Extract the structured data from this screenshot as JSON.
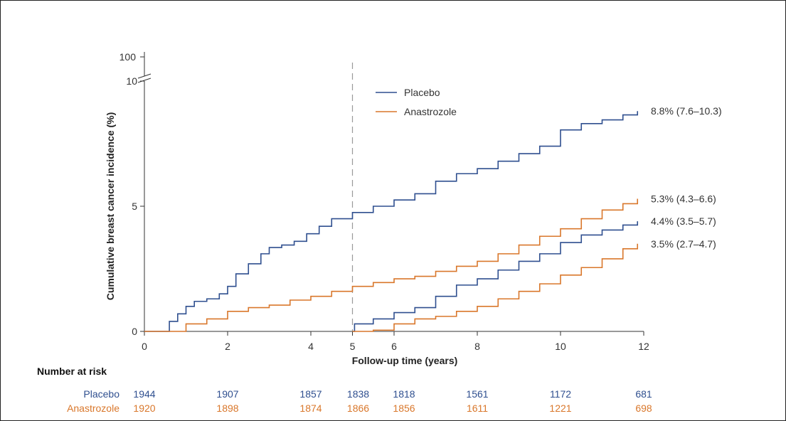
{
  "chart_data": {
    "type": "line",
    "title": "",
    "xlabel": "Follow-up time (years)",
    "ylabel": "Cumulative breast cancer incidence (%)",
    "xlim": [
      0,
      12
    ],
    "ylim": [
      0,
      10
    ],
    "x_ticks": [
      "0",
      "2",
      "4",
      "5",
      "6",
      "8",
      "10",
      "12"
    ],
    "y_ticks": [
      "0",
      "5",
      "10"
    ],
    "y_break_label": "100",
    "landmark_x": 5,
    "legend": {
      "position": "top-center",
      "entries": [
        {
          "label": "Placebo",
          "color": "#2f4f8f"
        },
        {
          "label": "Anastrozole",
          "color": "#d9772b"
        }
      ]
    },
    "series": [
      {
        "name": "Placebo",
        "color": "#2f4f8f",
        "points": [
          [
            0,
            0
          ],
          [
            0.4,
            0
          ],
          [
            0.6,
            0.4
          ],
          [
            0.8,
            0.7
          ],
          [
            1.0,
            1.0
          ],
          [
            1.2,
            1.2
          ],
          [
            1.5,
            1.3
          ],
          [
            1.8,
            1.5
          ],
          [
            2.0,
            1.8
          ],
          [
            2.2,
            2.3
          ],
          [
            2.5,
            2.7
          ],
          [
            2.8,
            3.1
          ],
          [
            3.0,
            3.35
          ],
          [
            3.3,
            3.45
          ],
          [
            3.6,
            3.6
          ],
          [
            3.9,
            3.9
          ],
          [
            4.2,
            4.2
          ],
          [
            4.5,
            4.5
          ],
          [
            5.0,
            4.75
          ],
          [
            5.5,
            5.0
          ],
          [
            6.0,
            5.25
          ],
          [
            6.5,
            5.5
          ],
          [
            7.0,
            6.0
          ],
          [
            7.5,
            6.3
          ],
          [
            8.0,
            6.5
          ],
          [
            8.5,
            6.8
          ],
          [
            9.0,
            7.1
          ],
          [
            9.5,
            7.4
          ],
          [
            10.0,
            8.05
          ],
          [
            10.5,
            8.3
          ],
          [
            11.0,
            8.45
          ],
          [
            11.5,
            8.65
          ],
          [
            11.85,
            8.8
          ]
        ],
        "end_label": "8.8% (7.6–10.3)"
      },
      {
        "name": "Anastrozole",
        "color": "#d9772b",
        "points": [
          [
            0,
            0
          ],
          [
            0.8,
            0
          ],
          [
            1.0,
            0.3
          ],
          [
            1.5,
            0.5
          ],
          [
            2.0,
            0.8
          ],
          [
            2.5,
            0.95
          ],
          [
            3.0,
            1.05
          ],
          [
            3.5,
            1.25
          ],
          [
            4.0,
            1.4
          ],
          [
            4.5,
            1.6
          ],
          [
            5.0,
            1.8
          ],
          [
            5.5,
            1.95
          ],
          [
            6.0,
            2.1
          ],
          [
            6.5,
            2.2
          ],
          [
            7.0,
            2.4
          ],
          [
            7.5,
            2.6
          ],
          [
            8.0,
            2.8
          ],
          [
            8.5,
            3.1
          ],
          [
            9.0,
            3.45
          ],
          [
            9.5,
            3.8
          ],
          [
            10.0,
            4.1
          ],
          [
            10.5,
            4.5
          ],
          [
            11.0,
            4.85
          ],
          [
            11.5,
            5.1
          ],
          [
            11.85,
            5.3
          ]
        ],
        "end_label": "5.3% (4.3–6.6)"
      },
      {
        "name": "Placebo",
        "color": "#2f4f8f",
        "points": [
          [
            5.0,
            0
          ],
          [
            5.05,
            0.3
          ],
          [
            5.5,
            0.5
          ],
          [
            6.0,
            0.75
          ],
          [
            6.5,
            0.95
          ],
          [
            7.0,
            1.4
          ],
          [
            7.5,
            1.85
          ],
          [
            8.0,
            2.1
          ],
          [
            8.5,
            2.45
          ],
          [
            9.0,
            2.8
          ],
          [
            9.5,
            3.1
          ],
          [
            10.0,
            3.55
          ],
          [
            10.5,
            3.85
          ],
          [
            11.0,
            4.05
          ],
          [
            11.5,
            4.25
          ],
          [
            11.85,
            4.4
          ]
        ],
        "end_label": "4.4% (3.5–5.7)"
      },
      {
        "name": "Anastrozole",
        "color": "#d9772b",
        "points": [
          [
            5.0,
            0
          ],
          [
            5.5,
            0.05
          ],
          [
            6.0,
            0.3
          ],
          [
            6.5,
            0.5
          ],
          [
            7.0,
            0.6
          ],
          [
            7.5,
            0.8
          ],
          [
            8.0,
            1.0
          ],
          [
            8.5,
            1.3
          ],
          [
            9.0,
            1.6
          ],
          [
            9.5,
            1.9
          ],
          [
            10.0,
            2.25
          ],
          [
            10.5,
            2.55
          ],
          [
            11.0,
            2.9
          ],
          [
            11.5,
            3.3
          ],
          [
            11.85,
            3.5
          ]
        ],
        "end_label": "3.5% (2.7–4.7)"
      }
    ],
    "risk_table": {
      "title": "Number at risk",
      "times": [
        0,
        2,
        4,
        5,
        6,
        8,
        10,
        12
      ],
      "rows": [
        {
          "label": "Placebo",
          "color": "#2f4f8f",
          "values": [
            "1944",
            "1907",
            "1857",
            "1838",
            "1818",
            "1561",
            "1172",
            "681"
          ]
        },
        {
          "label": "Anastrozole",
          "color": "#d9772b",
          "values": [
            "1920",
            "1898",
            "1874",
            "1866",
            "1856",
            "1611",
            "1221",
            "698"
          ]
        }
      ]
    }
  }
}
